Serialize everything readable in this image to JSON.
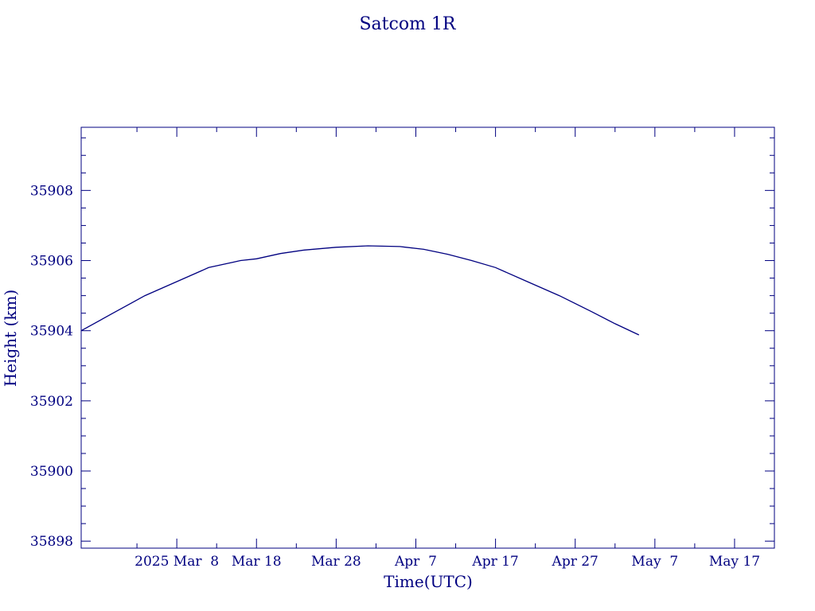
{
  "chart_data": {
    "type": "line",
    "title": "Satcom 1R",
    "xlabel": "Time(UTC)",
    "ylabel": "Height (km)",
    "color": "#000080",
    "grid": false,
    "legend": "none",
    "xlim": [
      "2025-02-24",
      "2025-05-22"
    ],
    "ylim": [
      35897.8,
      35909.8
    ],
    "x_ticks": [
      {
        "date": "2025-03-08",
        "label": "2025 Mar  8"
      },
      {
        "date": "2025-03-18",
        "label": "Mar 18"
      },
      {
        "date": "2025-03-28",
        "label": "Mar 28"
      },
      {
        "date": "2025-04-07",
        "label": "Apr  7"
      },
      {
        "date": "2025-04-17",
        "label": "Apr 17"
      },
      {
        "date": "2025-04-27",
        "label": "Apr 27"
      },
      {
        "date": "2025-05-07",
        "label": "May  7"
      },
      {
        "date": "2025-05-17",
        "label": "May 17"
      }
    ],
    "y_ticks": [
      35898,
      35900,
      35902,
      35904,
      35906,
      35908
    ],
    "series": [
      {
        "x": [
          "2025-02-24",
          "2025-02-28",
          "2025-03-04",
          "2025-03-08",
          "2025-03-12",
          "2025-03-15",
          "2025-03-16",
          "2025-03-18",
          "2025-03-21",
          "2025-03-24",
          "2025-03-28",
          "2025-04-01",
          "2025-04-05",
          "2025-04-08",
          "2025-04-11",
          "2025-04-14",
          "2025-04-17",
          "2025-04-21",
          "2025-04-25",
          "2025-04-29",
          "2025-05-02",
          "2025-05-05"
        ],
        "y": [
          35904.0,
          35904.5,
          35905.0,
          35905.4,
          35905.8,
          35905.95,
          35906.0,
          35906.05,
          35906.2,
          35906.3,
          35906.38,
          35906.42,
          35906.4,
          35906.32,
          35906.18,
          35906.0,
          35905.8,
          35905.4,
          35905.0,
          35904.55,
          35904.2,
          35903.88
        ]
      }
    ]
  }
}
